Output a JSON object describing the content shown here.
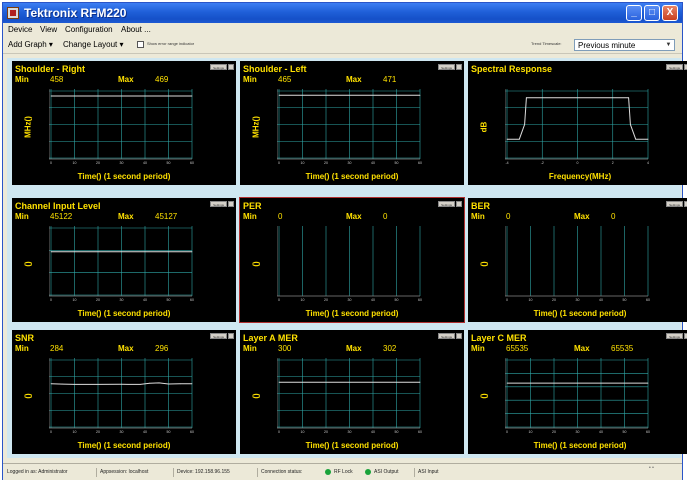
{
  "window": {
    "title": "Tektronix RFM220"
  },
  "window_buttons": {
    "minimize": "_",
    "maximize": "□",
    "close": "X"
  },
  "menu": [
    "Device",
    "View",
    "Configuration",
    "About ..."
  ],
  "toolbar": {
    "add_graph": "Add Graph",
    "change_layout": "Change Layout",
    "show_error_label": "Show error range indicator",
    "trend_timescale_label": "Trend Timescale:",
    "trend_timescale_value": "Previous minute"
  },
  "panels": [
    {
      "title": "Shoulder - Right",
      "settings": "Settings",
      "min_label": "Min",
      "min": "458",
      "max_label": "Max",
      "max": "469",
      "ylabel": "MHz()",
      "xlabel": "Time() (1 second period)",
      "yticks": [
        "400",
        "300",
        "200",
        "100",
        "0"
      ],
      "xticks": [
        "0",
        "10",
        "20",
        "30",
        "40",
        "50",
        "60"
      ]
    },
    {
      "title": "Shoulder - Left",
      "settings": "Settings",
      "min_label": "Min",
      "min": "465",
      "max_label": "Max",
      "max": "471",
      "ylabel": "MHz()",
      "xlabel": "Time() (1 second period)",
      "yticks": [
        "400",
        "300",
        "200",
        "100",
        "0"
      ],
      "xticks": [
        "0",
        "10",
        "20",
        "30",
        "40",
        "50",
        "60"
      ]
    },
    {
      "title": "Spectral Response",
      "settings": "Settings",
      "min_label": "",
      "min": "",
      "max_label": "",
      "max": "",
      "ylabel": "dB",
      "xlabel": "Frequency(MHz)",
      "yticks": [
        "0",
        "-10",
        "-20",
        "-30",
        "-40"
      ],
      "xticks": [
        "-4",
        "-2",
        "0",
        "2",
        "4"
      ]
    },
    {
      "title": "Channel Input Level",
      "settings": "Settings",
      "min_label": "Min",
      "min": "45122",
      "max_label": "Max",
      "max": "45127",
      "ylabel": "()",
      "xlabel": "Time() (1 second period)",
      "yticks": [
        "60K",
        "40K",
        "20K",
        "0"
      ],
      "xticks": [
        "0",
        "10",
        "20",
        "30",
        "40",
        "50",
        "60"
      ]
    },
    {
      "title": "PER",
      "settings": "Settings",
      "min_label": "Min",
      "min": "0",
      "max_label": "Max",
      "max": "0",
      "ylabel": "()",
      "xlabel": "Time() (1 second period)",
      "yticks": [],
      "xticks": [
        "0",
        "10",
        "20",
        "30",
        "40",
        "50",
        "60"
      ]
    },
    {
      "title": "BER",
      "settings": "Settings",
      "min_label": "Min",
      "min": "0",
      "max_label": "Max",
      "max": "0",
      "ylabel": "()",
      "xlabel": "Time() (1 second period)",
      "yticks": [],
      "xticks": [
        "0",
        "10",
        "20",
        "30",
        "40",
        "50",
        "60"
      ]
    },
    {
      "title": "SNR",
      "settings": "Settings",
      "min_label": "Min",
      "min": "284",
      "max_label": "Max",
      "max": "296",
      "ylabel": "()",
      "xlabel": "Time() (1 second period)",
      "yticks": [
        "400",
        "300",
        "200",
        "100",
        "0"
      ],
      "xticks": [
        "0",
        "10",
        "20",
        "30",
        "40",
        "50",
        "60"
      ]
    },
    {
      "title": "Layer A MER",
      "settings": "Settings",
      "min_label": "Min",
      "min": "300",
      "max_label": "Max",
      "max": "302",
      "ylabel": "()",
      "xlabel": "Time() (1 second period)",
      "yticks": [
        "400",
        "300",
        "200",
        "100",
        "0"
      ],
      "xticks": [
        "0",
        "10",
        "20",
        "30",
        "40",
        "50",
        "60"
      ]
    },
    {
      "title": "Layer C MER",
      "settings": "Settings",
      "min_label": "Min",
      "min": "65535",
      "max_label": "Max",
      "max": "65535",
      "ylabel": "()",
      "xlabel": "Time() (1 second period)",
      "yticks": [
        "100K",
        "80K",
        "60K",
        "40K",
        "20K",
        "0"
      ],
      "xticks": [
        "0",
        "10",
        "20",
        "30",
        "40",
        "50",
        "60"
      ]
    }
  ],
  "chart_data": [
    {
      "type": "line",
      "title": "Shoulder - Right",
      "ylabel": "MHz()",
      "xlabel": "Time() (1 second period)",
      "xlim": [
        0,
        60
      ],
      "ylim": [
        0,
        500
      ],
      "series": [
        {
          "x": [
            0,
            60
          ],
          "values": [
            463,
            463
          ]
        }
      ]
    },
    {
      "type": "line",
      "title": "Shoulder - Left",
      "ylabel": "MHz()",
      "xlabel": "Time() (1 second period)",
      "xlim": [
        0,
        60
      ],
      "ylim": [
        0,
        500
      ],
      "series": [
        {
          "x": [
            0,
            60
          ],
          "values": [
            468,
            468
          ]
        }
      ]
    },
    {
      "type": "line",
      "title": "Spectral Response",
      "ylabel": "dB",
      "xlabel": "Frequency(MHz)",
      "xlim": [
        -4,
        4
      ],
      "ylim": [
        -45,
        5
      ],
      "series": [
        {
          "x": [
            -4,
            -3.3,
            -3.0,
            -2.9,
            2.9,
            3.0,
            3.3,
            4
          ],
          "values": [
            -31,
            -31,
            -20,
            0,
            0,
            -20,
            -31,
            -31
          ]
        }
      ]
    },
    {
      "type": "line",
      "title": "Channel Input Level",
      "ylabel": "()",
      "xlabel": "Time() (1 second period)",
      "xlim": [
        0,
        60
      ],
      "ylim": [
        0,
        70000
      ],
      "series": [
        {
          "x": [
            0,
            60
          ],
          "values": [
            45124,
            45124
          ]
        }
      ]
    },
    {
      "type": "line",
      "title": "PER",
      "ylabel": "()",
      "xlabel": "Time() (1 second period)",
      "xlim": [
        0,
        60
      ],
      "ylim": [
        0,
        1
      ],
      "series": []
    },
    {
      "type": "line",
      "title": "BER",
      "ylabel": "()",
      "xlabel": "Time() (1 second period)",
      "xlim": [
        0,
        60
      ],
      "ylim": [
        0,
        1
      ],
      "series": []
    },
    {
      "type": "line",
      "title": "SNR",
      "ylabel": "()",
      "xlabel": "Time() (1 second period)",
      "xlim": [
        0,
        60
      ],
      "ylim": [
        0,
        450
      ],
      "series": [
        {
          "x": [
            0,
            5,
            10,
            20,
            30,
            38,
            42,
            46,
            50,
            55,
            60
          ],
          "values": [
            290,
            288,
            286,
            286,
            287,
            286,
            294,
            296,
            289,
            290,
            290
          ]
        }
      ]
    },
    {
      "type": "line",
      "title": "Layer A MER",
      "ylabel": "()",
      "xlabel": "Time() (1 second period)",
      "xlim": [
        0,
        60
      ],
      "ylim": [
        0,
        450
      ],
      "series": [
        {
          "x": [
            0,
            60
          ],
          "values": [
            301,
            301
          ]
        }
      ]
    },
    {
      "type": "line",
      "title": "Layer C MER",
      "ylabel": "()",
      "xlabel": "Time() (1 second period)",
      "xlim": [
        0,
        60
      ],
      "ylim": [
        0,
        100000
      ],
      "series": [
        {
          "x": [
            0,
            60
          ],
          "values": [
            65535,
            65535
          ]
        }
      ]
    }
  ],
  "status": {
    "logged_in": "Logged in as: Administrator",
    "appsession": "Appsession: localhost",
    "device": "Device: 192.158.96.155",
    "connection": "Connection status:",
    "rf_lock": "RF Lock",
    "asi_output": "ASI Output",
    "asi_input": "ASI Input"
  },
  "colors": {
    "accent": "#1f5fd8",
    "panel_bg": "#000000",
    "text_yellow": "#ffe100",
    "trace": "#dddddd",
    "grid": "#2fa8a8"
  }
}
